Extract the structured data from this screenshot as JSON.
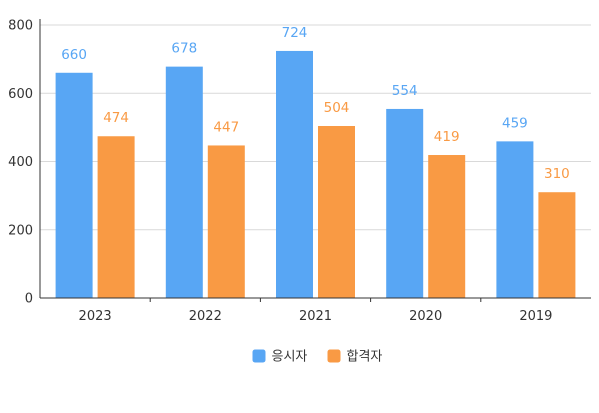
{
  "chart_data": {
    "type": "bar",
    "categories": [
      "2023",
      "2022",
      "2021",
      "2020",
      "2019"
    ],
    "series": [
      {
        "name": "응시자",
        "values": [
          660,
          678,
          724,
          554,
          459
        ],
        "color": "#58a6f4"
      },
      {
        "name": "합격자",
        "values": [
          474,
          447,
          504,
          419,
          310
        ],
        "color": "#f99a44"
      }
    ],
    "ylim": [
      0,
      800
    ],
    "yticks": [
      0,
      200,
      400,
      600,
      800
    ],
    "grid": true,
    "data_labels": true,
    "legend": "bottom-center",
    "axis_color": "#333333",
    "grid_color": "#d9d9d9"
  }
}
